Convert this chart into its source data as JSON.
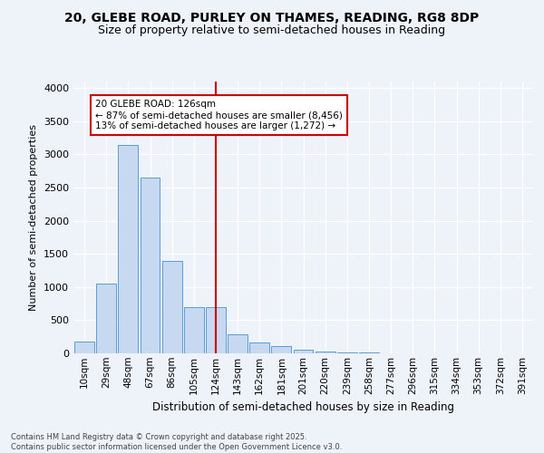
{
  "title_line1": "20, GLEBE ROAD, PURLEY ON THAMES, READING, RG8 8DP",
  "title_line2": "Size of property relative to semi-detached houses in Reading",
  "xlabel": "Distribution of semi-detached houses by size in Reading",
  "ylabel": "Number of semi-detached properties",
  "categories": [
    "10sqm",
    "29sqm",
    "48sqm",
    "67sqm",
    "86sqm",
    "105sqm",
    "124sqm",
    "143sqm",
    "162sqm",
    "181sqm",
    "201sqm",
    "220sqm",
    "239sqm",
    "258sqm",
    "277sqm",
    "296sqm",
    "315sqm",
    "334sqm",
    "353sqm",
    "372sqm",
    "391sqm"
  ],
  "values": [
    175,
    1050,
    3150,
    2650,
    1400,
    700,
    700,
    285,
    170,
    110,
    55,
    30,
    15,
    8,
    4,
    2,
    1,
    0,
    0,
    0,
    0
  ],
  "bar_color": "#c6d9f0",
  "bar_edge_color": "#5b9bd5",
  "vline_x": 6.0,
  "vline_color": "#cc0000",
  "annotation_title": "20 GLEBE ROAD: 126sqm",
  "annotation_line1": "← 87% of semi-detached houses are smaller (8,456)",
  "annotation_line2": "13% of semi-detached houses are larger (1,272) →",
  "annotation_box_edge": "#cc0000",
  "ylim": [
    0,
    4100
  ],
  "yticks": [
    0,
    500,
    1000,
    1500,
    2000,
    2500,
    3000,
    3500,
    4000
  ],
  "background_color": "#eef2f9",
  "grid_color": "#ffffff",
  "footer_line1": "Contains HM Land Registry data © Crown copyright and database right 2025.",
  "footer_line2": "Contains public sector information licensed under the Open Government Licence v3.0."
}
